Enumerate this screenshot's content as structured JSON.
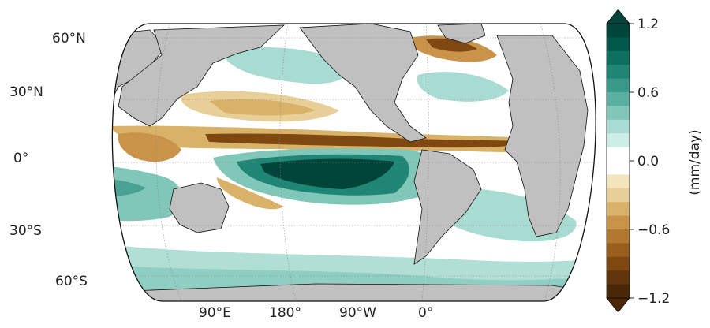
{
  "map": {
    "lat_labels": [
      "60°N",
      "30°N",
      "0°",
      "30°S",
      "60°S"
    ],
    "lon_labels": [
      "90°E",
      "180°",
      "90°W",
      "0°"
    ],
    "land_color": "#c0c0c0",
    "ocean_color": "#ffffff"
  },
  "colorbar": {
    "unit_label": "(mm/day)",
    "ticks": [
      "1.2",
      "0.6",
      "0.0",
      "−0.6",
      "−1.2"
    ],
    "range": [
      -1.2,
      1.2
    ],
    "colors_top_to_bottom": [
      "#00443a",
      "#01574a",
      "#0c6f60",
      "#1f8575",
      "#3a9a8a",
      "#5ab0a1",
      "#80c6b9",
      "#a8dbd1",
      "#cceee7",
      "#ffffff",
      "#ffffff",
      "#f3e4bd",
      "#e8cf97",
      "#d9b26a",
      "#c9944a",
      "#b27730",
      "#995e1c",
      "#7e4810",
      "#62350a",
      "#4a2706"
    ]
  }
}
